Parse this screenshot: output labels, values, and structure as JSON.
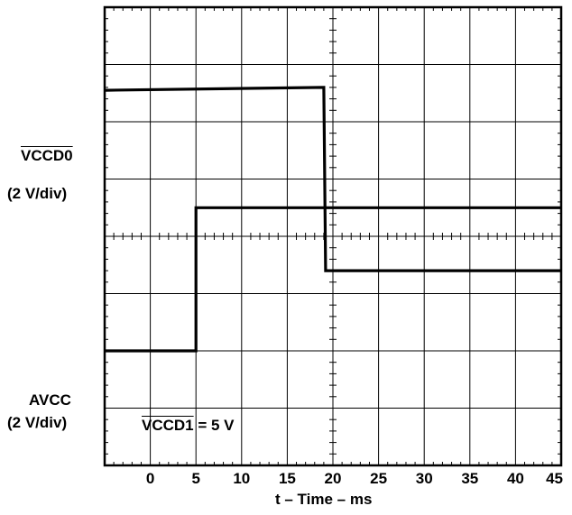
{
  "chart_data": {
    "type": "line",
    "x_ticks": [
      "0",
      "5",
      "10",
      "15",
      "20",
      "25",
      "30",
      "35",
      "40",
      "45"
    ],
    "xlabel": "t – Time – ms",
    "xlim": [
      -5,
      45
    ],
    "upper_ylabel_signal": "VCCD0",
    "upper_ylabel_scale": "(2 V/div)",
    "lower_ylabel_signal": "AVCC",
    "lower_ylabel_scale": "(2 V/div)",
    "annotation_signal": "VCCD1",
    "annotation_value": " = 5 V",
    "grid": true,
    "series": [
      {
        "name": "VCCD0",
        "x": [
          -5,
          5,
          5,
          45
        ],
        "y_div": [
          -2.0,
          -2.0,
          0.5,
          0.5
        ]
      },
      {
        "name": "AVCC",
        "x": [
          -5,
          19,
          19.2,
          45
        ],
        "y_div": [
          2.55,
          2.6,
          -0.6,
          -0.6
        ]
      }
    ]
  }
}
